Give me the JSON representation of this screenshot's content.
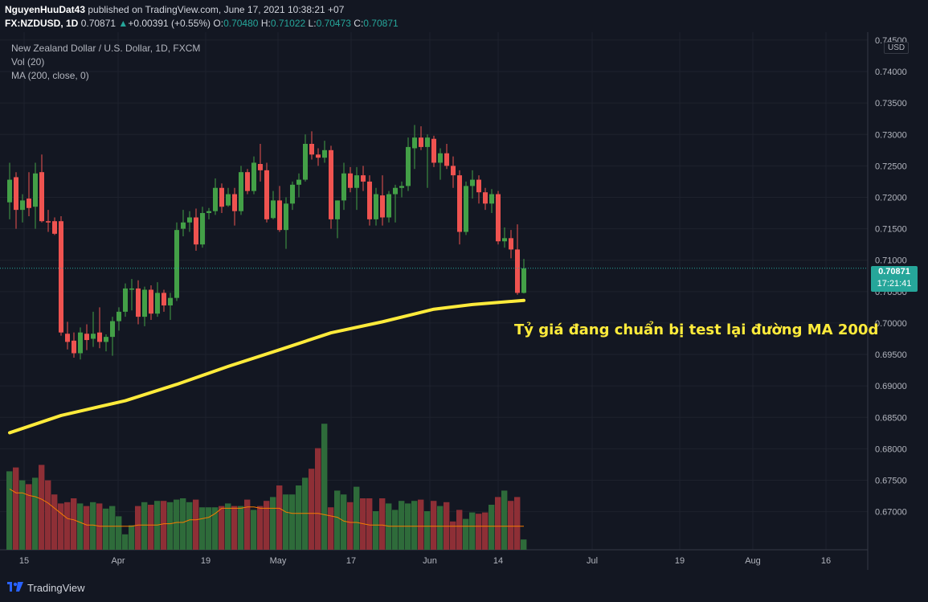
{
  "header": {
    "author": "NguyenHuuDat43",
    "published": "published on TradingView.com, June 17, 2021 10:38:21 +07",
    "symbol": "FX:NZDUSD, 1D",
    "last": "0.70871",
    "change_arrow": "▲",
    "change": "+0.00391 (+0.55%)",
    "o_label": "O:",
    "o": "0.70480",
    "h_label": "H:",
    "h": "0.71022",
    "l_label": "L:",
    "l": "0.70473",
    "c_label": "C:",
    "c": "0.70871"
  },
  "legend": {
    "title": "New Zealand Dollar / U.S. Dollar, 1D, FXCM",
    "vol": "Vol (20)",
    "ma": "MA (200, close, 0)"
  },
  "price_axis": {
    "currency": "USD",
    "current_price": "0.70871",
    "countdown": "17:21:41"
  },
  "annotation": "Tỷ giá đang chuẩn bị test lại đường MA 200d",
  "footer": {
    "brand": "TradingView"
  },
  "colors": {
    "background": "#131722",
    "up": "#26a69a",
    "candle_up": "#43a047",
    "candle_down": "#ef5350",
    "vol_up": "#2e6b3a",
    "vol_down": "#8e2f36",
    "ma200": "#ffeb3b",
    "vol_ma": "#f57c00"
  },
  "chart_data": {
    "type": "candlestick",
    "symbol": "NZDUSD",
    "interval": "1D",
    "ylim": [
      0.6665,
      0.7455
    ],
    "y_ticks": [
      "0.74500",
      "0.74000",
      "0.73500",
      "0.73000",
      "0.72500",
      "0.72000",
      "0.71500",
      "0.71000",
      "0.70500",
      "0.70000",
      "0.69500",
      "0.69000",
      "0.68500",
      "0.68000",
      "0.67500",
      "0.67000"
    ],
    "x_ticks": [
      "15",
      "Apr",
      "19",
      "May",
      "17",
      "Jun",
      "14",
      "Jul",
      "19",
      "Aug",
      "16"
    ],
    "candles": [
      {
        "o": 0.7192,
        "h": 0.7255,
        "l": 0.7165,
        "c": 0.7228
      },
      {
        "o": 0.7232,
        "h": 0.724,
        "l": 0.715,
        "c": 0.718
      },
      {
        "o": 0.718,
        "h": 0.7205,
        "l": 0.716,
        "c": 0.7195
      },
      {
        "o": 0.7198,
        "h": 0.724,
        "l": 0.717,
        "c": 0.7183
      },
      {
        "o": 0.7185,
        "h": 0.7255,
        "l": 0.715,
        "c": 0.7238
      },
      {
        "o": 0.724,
        "h": 0.7268,
        "l": 0.716,
        "c": 0.7162
      },
      {
        "o": 0.7162,
        "h": 0.718,
        "l": 0.7145,
        "c": 0.716
      },
      {
        "o": 0.7162,
        "h": 0.7168,
        "l": 0.714,
        "c": 0.7142
      },
      {
        "o": 0.7162,
        "h": 0.717,
        "l": 0.698,
        "c": 0.6985
      },
      {
        "o": 0.6983,
        "h": 0.7002,
        "l": 0.6958,
        "c": 0.697
      },
      {
        "o": 0.6972,
        "h": 0.6985,
        "l": 0.6945,
        "c": 0.6952
      },
      {
        "o": 0.6952,
        "h": 0.6993,
        "l": 0.6942,
        "c": 0.6985
      },
      {
        "o": 0.6983,
        "h": 0.6998,
        "l": 0.6957,
        "c": 0.6973
      },
      {
        "o": 0.6975,
        "h": 0.7018,
        "l": 0.6962,
        "c": 0.6983
      },
      {
        "o": 0.6985,
        "h": 0.7025,
        "l": 0.696,
        "c": 0.697
      },
      {
        "o": 0.697,
        "h": 0.6982,
        "l": 0.6955,
        "c": 0.6978
      },
      {
        "o": 0.6978,
        "h": 0.701,
        "l": 0.6948,
        "c": 0.7003
      },
      {
        "o": 0.7003,
        "h": 0.7025,
        "l": 0.6988,
        "c": 0.7018
      },
      {
        "o": 0.7018,
        "h": 0.7063,
        "l": 0.701,
        "c": 0.7055
      },
      {
        "o": 0.7053,
        "h": 0.707,
        "l": 0.702,
        "c": 0.7055
      },
      {
        "o": 0.7055,
        "h": 0.7068,
        "l": 0.6998,
        "c": 0.701
      },
      {
        "o": 0.701,
        "h": 0.7058,
        "l": 0.6995,
        "c": 0.7053
      },
      {
        "o": 0.7053,
        "h": 0.706,
        "l": 0.7005,
        "c": 0.7015
      },
      {
        "o": 0.7015,
        "h": 0.7065,
        "l": 0.701,
        "c": 0.7048
      },
      {
        "o": 0.7048,
        "h": 0.7053,
        "l": 0.7018,
        "c": 0.7028
      },
      {
        "o": 0.7028,
        "h": 0.7048,
        "l": 0.7005,
        "c": 0.704
      },
      {
        "o": 0.704,
        "h": 0.716,
        "l": 0.7035,
        "c": 0.7148
      },
      {
        "o": 0.715,
        "h": 0.718,
        "l": 0.7138,
        "c": 0.716
      },
      {
        "o": 0.716,
        "h": 0.7178,
        "l": 0.7145,
        "c": 0.7168
      },
      {
        "o": 0.7168,
        "h": 0.7182,
        "l": 0.7115,
        "c": 0.7125
      },
      {
        "o": 0.7125,
        "h": 0.7185,
        "l": 0.712,
        "c": 0.7175
      },
      {
        "o": 0.7175,
        "h": 0.7183,
        "l": 0.7165,
        "c": 0.7178
      },
      {
        "o": 0.7178,
        "h": 0.723,
        "l": 0.7172,
        "c": 0.7215
      },
      {
        "o": 0.7215,
        "h": 0.7222,
        "l": 0.7175,
        "c": 0.7185
      },
      {
        "o": 0.7187,
        "h": 0.7215,
        "l": 0.7185,
        "c": 0.7205
      },
      {
        "o": 0.7205,
        "h": 0.7215,
        "l": 0.7155,
        "c": 0.7178
      },
      {
        "o": 0.7178,
        "h": 0.725,
        "l": 0.7172,
        "c": 0.724
      },
      {
        "o": 0.724,
        "h": 0.7245,
        "l": 0.7205,
        "c": 0.721
      },
      {
        "o": 0.721,
        "h": 0.7265,
        "l": 0.7205,
        "c": 0.7255
      },
      {
        "o": 0.7253,
        "h": 0.7285,
        "l": 0.7225,
        "c": 0.7243
      },
      {
        "o": 0.7243,
        "h": 0.7255,
        "l": 0.716,
        "c": 0.7165
      },
      {
        "o": 0.7167,
        "h": 0.721,
        "l": 0.7165,
        "c": 0.7195
      },
      {
        "o": 0.7195,
        "h": 0.7218,
        "l": 0.7145,
        "c": 0.7148
      },
      {
        "o": 0.7148,
        "h": 0.72,
        "l": 0.7118,
        "c": 0.719
      },
      {
        "o": 0.719,
        "h": 0.7225,
        "l": 0.718,
        "c": 0.722
      },
      {
        "o": 0.722,
        "h": 0.7238,
        "l": 0.72,
        "c": 0.7228
      },
      {
        "o": 0.7228,
        "h": 0.73,
        "l": 0.7225,
        "c": 0.7285
      },
      {
        "o": 0.7285,
        "h": 0.7305,
        "l": 0.726,
        "c": 0.7268
      },
      {
        "o": 0.7268,
        "h": 0.7278,
        "l": 0.725,
        "c": 0.7263
      },
      {
        "o": 0.7263,
        "h": 0.729,
        "l": 0.7255,
        "c": 0.7275
      },
      {
        "o": 0.7275,
        "h": 0.7282,
        "l": 0.715,
        "c": 0.7165
      },
      {
        "o": 0.7165,
        "h": 0.7195,
        "l": 0.7135,
        "c": 0.7195
      },
      {
        "o": 0.7195,
        "h": 0.7255,
        "l": 0.718,
        "c": 0.7238
      },
      {
        "o": 0.7238,
        "h": 0.7248,
        "l": 0.7208,
        "c": 0.7215
      },
      {
        "o": 0.7215,
        "h": 0.7248,
        "l": 0.718,
        "c": 0.7235
      },
      {
        "o": 0.7235,
        "h": 0.725,
        "l": 0.721,
        "c": 0.7225
      },
      {
        "o": 0.7225,
        "h": 0.7235,
        "l": 0.7155,
        "c": 0.7165
      },
      {
        "o": 0.7165,
        "h": 0.7215,
        "l": 0.7155,
        "c": 0.7205
      },
      {
        "o": 0.7203,
        "h": 0.7235,
        "l": 0.7155,
        "c": 0.7168
      },
      {
        "o": 0.7168,
        "h": 0.721,
        "l": 0.716,
        "c": 0.7205
      },
      {
        "o": 0.7205,
        "h": 0.722,
        "l": 0.716,
        "c": 0.7215
      },
      {
        "o": 0.7215,
        "h": 0.7225,
        "l": 0.72,
        "c": 0.7218
      },
      {
        "o": 0.7218,
        "h": 0.7295,
        "l": 0.721,
        "c": 0.728
      },
      {
        "o": 0.7278,
        "h": 0.7315,
        "l": 0.7245,
        "c": 0.7295
      },
      {
        "o": 0.7295,
        "h": 0.7313,
        "l": 0.7275,
        "c": 0.728
      },
      {
        "o": 0.728,
        "h": 0.73,
        "l": 0.7215,
        "c": 0.7295
      },
      {
        "o": 0.7293,
        "h": 0.7298,
        "l": 0.7248,
        "c": 0.7255
      },
      {
        "o": 0.7255,
        "h": 0.7278,
        "l": 0.7228,
        "c": 0.727
      },
      {
        "o": 0.727,
        "h": 0.7285,
        "l": 0.7245,
        "c": 0.725
      },
      {
        "o": 0.725,
        "h": 0.7265,
        "l": 0.7215,
        "c": 0.7235
      },
      {
        "o": 0.7235,
        "h": 0.7243,
        "l": 0.7125,
        "c": 0.7145
      },
      {
        "o": 0.7145,
        "h": 0.7225,
        "l": 0.714,
        "c": 0.7218
      },
      {
        "o": 0.7218,
        "h": 0.7243,
        "l": 0.7198,
        "c": 0.7228
      },
      {
        "o": 0.7228,
        "h": 0.7235,
        "l": 0.719,
        "c": 0.7208
      },
      {
        "o": 0.7208,
        "h": 0.7215,
        "l": 0.718,
        "c": 0.719
      },
      {
        "o": 0.719,
        "h": 0.7213,
        "l": 0.7175,
        "c": 0.7205
      },
      {
        "o": 0.7205,
        "h": 0.721,
        "l": 0.7125,
        "c": 0.713
      },
      {
        "o": 0.713,
        "h": 0.7152,
        "l": 0.712,
        "c": 0.7135
      },
      {
        "o": 0.7135,
        "h": 0.7148,
        "l": 0.7103,
        "c": 0.7117
      },
      {
        "o": 0.7117,
        "h": 0.7157,
        "l": 0.7045,
        "c": 0.7048
      },
      {
        "o": 0.7048,
        "h": 0.7102,
        "l": 0.7047,
        "c": 0.7087
      }
    ],
    "volume_relative": [
      0.61,
      0.64,
      0.54,
      0.51,
      0.56,
      0.66,
      0.54,
      0.43,
      0.36,
      0.37,
      0.4,
      0.36,
      0.34,
      0.37,
      0.36,
      0.32,
      0.34,
      0.26,
      0.12,
      0.19,
      0.34,
      0.37,
      0.35,
      0.38,
      0.38,
      0.37,
      0.39,
      0.4,
      0.37,
      0.39,
      0.33,
      0.33,
      0.33,
      0.34,
      0.36,
      0.34,
      0.34,
      0.39,
      0.31,
      0.34,
      0.38,
      0.41,
      0.5,
      0.43,
      0.43,
      0.5,
      0.56,
      0.63,
      0.79,
      0.98,
      0.33,
      0.46,
      0.43,
      0.37,
      0.49,
      0.4,
      0.4,
      0.3,
      0.4,
      0.36,
      0.31,
      0.38,
      0.36,
      0.38,
      0.39,
      0.3,
      0.38,
      0.34,
      0.37,
      0.22,
      0.31,
      0.24,
      0.29,
      0.28,
      0.29,
      0.35,
      0.41,
      0.46,
      0.38,
      0.41,
      0.08
    ],
    "ma200": [
      {
        "t": 0,
        "v": 0.68255
      },
      {
        "t": 8,
        "v": 0.6853
      },
      {
        "t": 18,
        "v": 0.68765
      },
      {
        "t": 26,
        "v": 0.69025
      },
      {
        "t": 34,
        "v": 0.6931
      },
      {
        "t": 42,
        "v": 0.69575
      },
      {
        "t": 50,
        "v": 0.69845
      },
      {
        "t": 58,
        "v": 0.7002
      },
      {
        "t": 66,
        "v": 0.7022
      },
      {
        "t": 72,
        "v": 0.70295
      },
      {
        "t": 80,
        "v": 0.7036
      }
    ],
    "volume_ma_relative": [
      0.41,
      0.38,
      0.38,
      0.36,
      0.35,
      0.33,
      0.3,
      0.26,
      0.22,
      0.18,
      0.17,
      0.15,
      0.13,
      0.13,
      0.12,
      0.12,
      0.12,
      0.12,
      0.12,
      0.12,
      0.13,
      0.13,
      0.13,
      0.13,
      0.14,
      0.14,
      0.15,
      0.15,
      0.17,
      0.17,
      0.18,
      0.19,
      0.22,
      0.26,
      0.26,
      0.26,
      0.26,
      0.27,
      0.27,
      0.26,
      0.26,
      0.26,
      0.26,
      0.23,
      0.22,
      0.22,
      0.22,
      0.22,
      0.22,
      0.21,
      0.2,
      0.19,
      0.16,
      0.15,
      0.15,
      0.14,
      0.13,
      0.13,
      0.13,
      0.12,
      0.12,
      0.12,
      0.12,
      0.12,
      0.12,
      0.12,
      0.12,
      0.12,
      0.12,
      0.12,
      0.12,
      0.12,
      0.12,
      0.12,
      0.12,
      0.12,
      0.12,
      0.12,
      0.12,
      0.12,
      0.12
    ],
    "last_price": 0.70871
  }
}
